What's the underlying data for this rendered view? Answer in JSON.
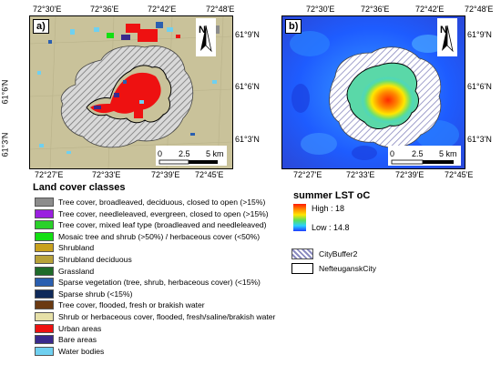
{
  "panel_a": {
    "label": "a)",
    "top_ticks": [
      "72°30'E",
      "72°36'E",
      "72°42'E",
      "72°48'E"
    ],
    "bottom_ticks": [
      "72°27'E",
      "72°33'E",
      "72°39'E",
      "72°45'E"
    ],
    "left_ticks": [
      "61°6'N",
      "61°3'N"
    ],
    "right_ticks": [
      "61°9'N",
      "61°6'N",
      "61°3'N"
    ],
    "north": "N",
    "scale": {
      "zero": "0",
      "mid": "2.5",
      "end": "5 km"
    }
  },
  "panel_b": {
    "label": "b)",
    "top_ticks": [
      "72°30'E",
      "72°36'E",
      "72°42'E",
      "72°48'E"
    ],
    "bottom_ticks": [
      "72°27'E",
      "72°33'E",
      "72°39'E",
      "72°45'E"
    ],
    "right_ticks": [
      "61°9'N",
      "61°6'N",
      "61°3'N"
    ],
    "north": "N",
    "scale": {
      "zero": "0",
      "mid": "2.5",
      "end": "5 km"
    }
  },
  "land_cover": {
    "title": "Land cover classes",
    "items": [
      {
        "label": "Tree cover, broadleaved, deciduous, closed to open (>15%)",
        "color": "#8c8c8c"
      },
      {
        "label": "Tree cover, needleleaved, evergreen, closed to open (>15%)",
        "color": "#9a1fe0"
      },
      {
        "label": "Tree cover, mixed leaf type (broadleaved and needleleaved)",
        "color": "#2ad12a"
      },
      {
        "label": "Mosaic tree and shrub (>50%) / herbaceous cover (<50%)",
        "color": "#12e012"
      },
      {
        "label": "Shrubland",
        "color": "#c9a11e"
      },
      {
        "label": "Shrubland deciduous",
        "color": "#b8a23a"
      },
      {
        "label": "Grassland",
        "color": "#1f6b2a"
      },
      {
        "label": "Sparse vegetation (tree, shrub, herbaceous cover) (<15%)",
        "color": "#2a5fb0"
      },
      {
        "label": "Sparse shrub (<15%)",
        "color": "#0f2a5a"
      },
      {
        "label": "Tree cover, flooded, fresh or brakish water",
        "color": "#6b3a12"
      },
      {
        "label": "Shrub or herbaceous cover, flooded, fresh/saline/brakish water",
        "color": "#e6e0a8"
      },
      {
        "label": "Urban areas",
        "color": "#ee1111"
      },
      {
        "label": "Bare areas",
        "color": "#3a2a8c"
      },
      {
        "label": "Water bodies",
        "color": "#6fd0f0"
      }
    ]
  },
  "lst_legend": {
    "title": "summer LST oC",
    "high": "High : 18",
    "low": "Low : 14.8",
    "buffer": "CityBuffer2",
    "city": "NefteuganskCity"
  },
  "colors": {
    "land_bg": "#c9c29a",
    "urban": "#ee1111",
    "lst_cold": "#1e3cff",
    "lst_warm": "#ff2a00"
  }
}
